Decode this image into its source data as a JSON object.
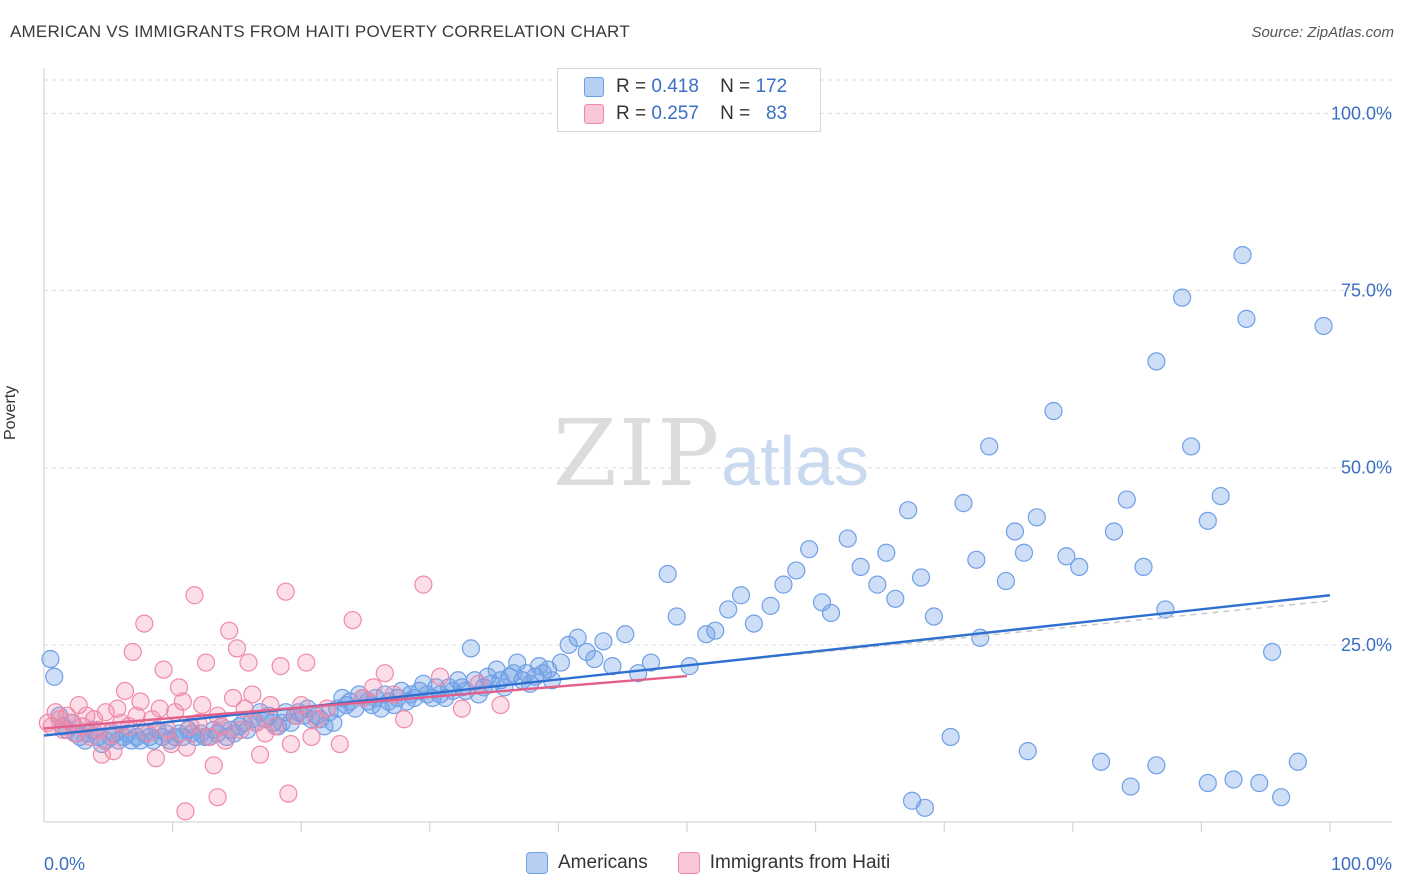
{
  "title": "AMERICAN VS IMMIGRANTS FROM HAITI POVERTY CORRELATION CHART",
  "source": "Source: ZipAtlas.com",
  "watermark": {
    "zip": "ZIP",
    "atlas": "atlas"
  },
  "colors": {
    "americans": "#6fa0e6",
    "haiti": "#f08aa8",
    "americans_line": "#2f6fd0",
    "haiti_line": "#e2608a",
    "axis_text": "#3a6fc4",
    "grid": "#dddddd"
  },
  "legend": {
    "rows": [
      {
        "r_label": "R =",
        "r_value": "0.418",
        "n_label": "N =",
        "n_value": "172"
      },
      {
        "r_label": "R =",
        "r_value": "0.257",
        "n_label": "N =",
        "n_value": "83"
      }
    ]
  },
  "bottom_legend": [
    "Americans",
    "Immigrants from Haiti"
  ],
  "chart_data": {
    "type": "scatter",
    "title": "AMERICAN VS IMMIGRANTS FROM HAITI POVERTY CORRELATION CHART",
    "xlabel": "",
    "ylabel": "Poverty",
    "xlim": [
      0,
      100
    ],
    "ylim": [
      0,
      100
    ],
    "x_tick_labels": [
      "0.0%",
      "100.0%"
    ],
    "y_tick_labels": [
      "25.0%",
      "50.0%",
      "75.0%",
      "100.0%"
    ],
    "y_ticks": [
      25,
      50,
      75,
      100
    ],
    "grid": true,
    "legend_position": "top-center",
    "series": [
      {
        "name": "Americans",
        "r": 0.418,
        "n": 172,
        "trend": {
          "x": [
            0,
            100
          ],
          "y": [
            12.2,
            32.0
          ]
        },
        "points": [
          [
            0.5,
            23.0
          ],
          [
            0.8,
            20.5
          ],
          [
            1.2,
            15.0
          ],
          [
            1.5,
            13.5
          ],
          [
            1.8,
            13.0
          ],
          [
            2.2,
            14.0
          ],
          [
            2.5,
            12.5
          ],
          [
            2.8,
            12.0
          ],
          [
            3.2,
            11.5
          ],
          [
            3.5,
            12.5
          ],
          [
            3.8,
            13.0
          ],
          [
            4.2,
            12.0
          ],
          [
            4.5,
            11.0
          ],
          [
            4.8,
            11.5
          ],
          [
            5.2,
            12.0
          ],
          [
            5.5,
            12.5
          ],
          [
            5.8,
            11.5
          ],
          [
            6.2,
            12.0
          ],
          [
            6.5,
            12.5
          ],
          [
            6.8,
            11.5
          ],
          [
            7.2,
            12.0
          ],
          [
            7.5,
            11.5
          ],
          [
            7.8,
            12.5
          ],
          [
            8.2,
            12.0
          ],
          [
            8.5,
            11.5
          ],
          [
            8.8,
            13.0
          ],
          [
            9.2,
            12.0
          ],
          [
            9.5,
            12.5
          ],
          [
            9.8,
            11.5
          ],
          [
            10.2,
            12.0
          ],
          [
            10.5,
            12.5
          ],
          [
            10.8,
            12.0
          ],
          [
            11.2,
            13.0
          ],
          [
            11.5,
            12.5
          ],
          [
            11.8,
            12.0
          ],
          [
            12.2,
            12.5
          ],
          [
            12.5,
            12.0
          ],
          [
            12.8,
            12.0
          ],
          [
            13.2,
            13.0
          ],
          [
            13.5,
            12.5
          ],
          [
            13.8,
            13.5
          ],
          [
            14.2,
            12.0
          ],
          [
            14.5,
            13.0
          ],
          [
            14.8,
            12.5
          ],
          [
            15.2,
            13.5
          ],
          [
            15.5,
            14.0
          ],
          [
            15.8,
            13.0
          ],
          [
            16.2,
            14.5
          ],
          [
            16.5,
            14.0
          ],
          [
            16.8,
            15.5
          ],
          [
            17.2,
            14.5
          ],
          [
            17.5,
            15.0
          ],
          [
            17.8,
            14.0
          ],
          [
            18.2,
            13.5
          ],
          [
            18.5,
            14.0
          ],
          [
            18.8,
            15.5
          ],
          [
            19.2,
            14.0
          ],
          [
            19.5,
            15.0
          ],
          [
            19.8,
            15.5
          ],
          [
            20.2,
            15.0
          ],
          [
            20.5,
            16.0
          ],
          [
            20.8,
            14.5
          ],
          [
            21.2,
            15.0
          ],
          [
            21.5,
            14.5
          ],
          [
            21.8,
            13.5
          ],
          [
            22.2,
            15.5
          ],
          [
            22.5,
            14.0
          ],
          [
            22.8,
            16.0
          ],
          [
            23.2,
            17.5
          ],
          [
            23.5,
            16.5
          ],
          [
            23.8,
            17.0
          ],
          [
            24.2,
            16.0
          ],
          [
            24.5,
            18.0
          ],
          [
            24.8,
            17.5
          ],
          [
            25.2,
            17.0
          ],
          [
            25.5,
            16.5
          ],
          [
            25.8,
            17.5
          ],
          [
            26.2,
            16.0
          ],
          [
            26.5,
            18.0
          ],
          [
            26.8,
            17.0
          ],
          [
            27.2,
            16.5
          ],
          [
            27.5,
            17.5
          ],
          [
            27.8,
            18.5
          ],
          [
            28.2,
            17.0
          ],
          [
            28.5,
            18.0
          ],
          [
            28.8,
            17.5
          ],
          [
            29.2,
            18.5
          ],
          [
            29.5,
            19.5
          ],
          [
            29.8,
            18.0
          ],
          [
            30.2,
            17.5
          ],
          [
            30.5,
            19.0
          ],
          [
            30.8,
            18.0
          ],
          [
            31.2,
            17.5
          ],
          [
            31.5,
            19.0
          ],
          [
            31.8,
            18.5
          ],
          [
            32.2,
            20.0
          ],
          [
            32.5,
            19.0
          ],
          [
            32.8,
            18.5
          ],
          [
            33.2,
            24.5
          ],
          [
            33.5,
            20.0
          ],
          [
            33.8,
            18.0
          ],
          [
            34.2,
            19.0
          ],
          [
            34.5,
            20.5
          ],
          [
            34.8,
            19.5
          ],
          [
            35.2,
            21.5
          ],
          [
            35.5,
            20.0
          ],
          [
            35.8,
            19.0
          ],
          [
            36.2,
            20.5
          ],
          [
            36.5,
            21.0
          ],
          [
            36.8,
            22.5
          ],
          [
            37.2,
            20.0
          ],
          [
            37.5,
            21.0
          ],
          [
            37.8,
            19.5
          ],
          [
            38.2,
            20.5
          ],
          [
            38.5,
            22.0
          ],
          [
            38.8,
            21.0
          ],
          [
            39.2,
            21.5
          ],
          [
            39.5,
            20.0
          ],
          [
            40.2,
            22.5
          ],
          [
            40.8,
            25.0
          ],
          [
            41.5,
            26.0
          ],
          [
            42.2,
            24.0
          ],
          [
            42.8,
            23.0
          ],
          [
            43.5,
            25.5
          ],
          [
            44.2,
            22.0
          ],
          [
            45.2,
            26.5
          ],
          [
            46.2,
            21.0
          ],
          [
            47.2,
            22.5
          ],
          [
            48.5,
            35.0
          ],
          [
            49.2,
            29.0
          ],
          [
            50.2,
            22.0
          ],
          [
            51.5,
            26.5
          ],
          [
            52.2,
            27.0
          ],
          [
            53.2,
            30.0
          ],
          [
            54.2,
            32.0
          ],
          [
            55.2,
            28.0
          ],
          [
            56.5,
            30.5
          ],
          [
            57.5,
            33.5
          ],
          [
            58.5,
            35.5
          ],
          [
            59.5,
            38.5
          ],
          [
            60.5,
            31.0
          ],
          [
            61.2,
            29.5
          ],
          [
            62.5,
            40.0
          ],
          [
            63.5,
            36.0
          ],
          [
            64.8,
            33.5
          ],
          [
            65.5,
            38.0
          ],
          [
            66.2,
            31.5
          ],
          [
            67.2,
            44.0
          ],
          [
            68.2,
            34.5
          ],
          [
            69.2,
            29.0
          ],
          [
            70.5,
            12.0
          ],
          [
            71.5,
            45.0
          ],
          [
            72.5,
            37.0
          ],
          [
            73.5,
            53.0
          ],
          [
            74.8,
            34.0
          ],
          [
            75.5,
            41.0
          ],
          [
            76.2,
            38.0
          ],
          [
            77.2,
            43.0
          ],
          [
            78.5,
            58.0
          ],
          [
            79.5,
            37.5
          ],
          [
            80.5,
            36.0
          ],
          [
            82.2,
            8.5
          ],
          [
            83.2,
            41.0
          ],
          [
            84.2,
            45.5
          ],
          [
            85.5,
            36.0
          ],
          [
            86.5,
            65.0
          ],
          [
            87.2,
            30.0
          ],
          [
            88.5,
            74.0
          ],
          [
            89.2,
            53.0
          ],
          [
            90.5,
            42.5
          ],
          [
            91.5,
            46.0
          ],
          [
            93.2,
            80.0
          ],
          [
            93.5,
            71.0
          ],
          [
            95.5,
            24.0
          ],
          [
            97.5,
            8.5
          ],
          [
            99.5,
            70.0
          ],
          [
            67.5,
            3.0
          ],
          [
            68.5,
            2.0
          ],
          [
            72.8,
            26.0
          ],
          [
            76.5,
            10.0
          ],
          [
            84.5,
            5.0
          ],
          [
            86.5,
            8.0
          ],
          [
            90.5,
            5.5
          ],
          [
            92.5,
            6.0
          ],
          [
            94.5,
            5.5
          ],
          [
            96.2,
            3.5
          ]
        ]
      },
      {
        "name": "Immigrants from Haiti",
        "r": 0.257,
        "n": 83,
        "trend": {
          "x": [
            0,
            50
          ],
          "y": [
            13.2,
            20.6
          ]
        },
        "points": [
          [
            0.3,
            14.0
          ],
          [
            0.6,
            13.5
          ],
          [
            0.9,
            15.5
          ],
          [
            1.2,
            14.5
          ],
          [
            1.5,
            13.0
          ],
          [
            1.8,
            15.0
          ],
          [
            2.1,
            14.0
          ],
          [
            2.4,
            12.5
          ],
          [
            2.7,
            16.5
          ],
          [
            3.0,
            13.5
          ],
          [
            3.3,
            15.0
          ],
          [
            3.6,
            12.0
          ],
          [
            3.9,
            14.5
          ],
          [
            4.2,
            13.0
          ],
          [
            4.5,
            9.5
          ],
          [
            4.8,
            15.5
          ],
          [
            5.1,
            12.5
          ],
          [
            5.4,
            10.0
          ],
          [
            5.7,
            16.0
          ],
          [
            6.0,
            14.0
          ],
          [
            6.3,
            18.5
          ],
          [
            6.6,
            13.5
          ],
          [
            6.9,
            24.0
          ],
          [
            7.2,
            15.0
          ],
          [
            7.5,
            17.0
          ],
          [
            7.8,
            28.0
          ],
          [
            8.1,
            12.5
          ],
          [
            8.4,
            14.5
          ],
          [
            8.7,
            9.0
          ],
          [
            9.0,
            16.0
          ],
          [
            9.3,
            21.5
          ],
          [
            9.6,
            13.0
          ],
          [
            9.9,
            11.0
          ],
          [
            10.2,
            15.5
          ],
          [
            10.5,
            19.0
          ],
          [
            10.8,
            17.0
          ],
          [
            11.1,
            10.5
          ],
          [
            11.4,
            13.5
          ],
          [
            11.7,
            32.0
          ],
          [
            12.0,
            14.0
          ],
          [
            12.3,
            16.5
          ],
          [
            12.6,
            22.5
          ],
          [
            12.9,
            12.0
          ],
          [
            13.2,
            8.0
          ],
          [
            13.5,
            15.0
          ],
          [
            13.8,
            13.5
          ],
          [
            14.1,
            11.5
          ],
          [
            14.4,
            27.0
          ],
          [
            14.7,
            17.5
          ],
          [
            15.0,
            24.5
          ],
          [
            15.3,
            13.0
          ],
          [
            15.6,
            16.0
          ],
          [
            15.9,
            22.5
          ],
          [
            16.2,
            18.0
          ],
          [
            16.5,
            14.0
          ],
          [
            16.8,
            9.5
          ],
          [
            17.2,
            12.5
          ],
          [
            17.6,
            16.5
          ],
          [
            18.0,
            13.5
          ],
          [
            18.4,
            22.0
          ],
          [
            18.8,
            32.5
          ],
          [
            19.2,
            11.0
          ],
          [
            19.6,
            15.0
          ],
          [
            20.0,
            16.5
          ],
          [
            20.4,
            22.5
          ],
          [
            20.8,
            12.0
          ],
          [
            21.2,
            14.5
          ],
          [
            22.0,
            16.0
          ],
          [
            23.0,
            11.0
          ],
          [
            24.0,
            28.5
          ],
          [
            24.8,
            17.5
          ],
          [
            25.6,
            19.0
          ],
          [
            26.5,
            21.0
          ],
          [
            27.2,
            18.0
          ],
          [
            28.0,
            14.5
          ],
          [
            29.5,
            33.5
          ],
          [
            30.8,
            20.5
          ],
          [
            32.5,
            16.0
          ],
          [
            33.8,
            19.5
          ],
          [
            35.5,
            16.5
          ],
          [
            11.0,
            1.5
          ],
          [
            13.5,
            3.5
          ],
          [
            19.0,
            4.0
          ]
        ]
      }
    ]
  }
}
